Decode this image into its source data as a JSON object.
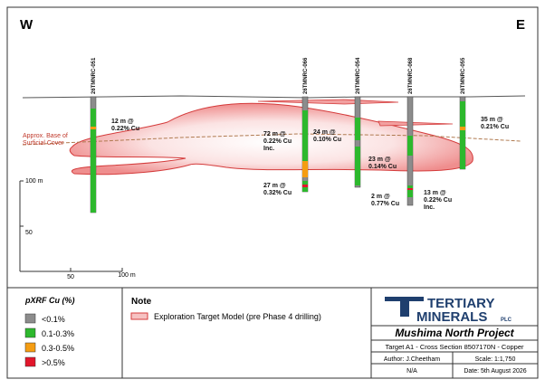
{
  "header": {
    "west": "W",
    "east": "E"
  },
  "holes": [
    "26TMNRC-051",
    "26TMNRC-066",
    "26TMNRC-054",
    "26TMNRC-068",
    "26TMNRC-055"
  ],
  "annotations": [
    {
      "lines": [
        "12 m @",
        "0.22% Cu"
      ]
    },
    {
      "lines": [
        "72 m @",
        "0.22% Cu",
        "Inc."
      ]
    },
    {
      "lines": [
        "24 m @",
        "0.10% Cu"
      ]
    },
    {
      "lines": [
        "35 m @",
        "0.21% Cu"
      ]
    },
    {
      "lines": [
        "23 m @",
        "0.14% Cu"
      ]
    },
    {
      "lines": [
        "27 m @",
        "0.32% Cu"
      ]
    },
    {
      "lines": [
        "2 m @",
        "0.77% Cu"
      ]
    },
    {
      "lines": [
        "13 m @",
        "0.22% Cu",
        "Inc."
      ]
    }
  ],
  "cover_label": [
    "Approx. Base of",
    "Surficial Cover"
  ],
  "scale": {
    "v_top": "100 m",
    "v_mid": "50",
    "h_mid": "50",
    "h_end": "100 m"
  },
  "legend": {
    "title": "pXRF Cu (%)",
    "items": [
      "<0.1%",
      "0.1-0.3%",
      "0.3-0.5%",
      ">0.5%"
    ]
  },
  "note": {
    "title": "Note",
    "item": "Exploration Target Model (pre Phase 4 drilling)"
  },
  "title_block": {
    "logo_line1": "TERTIARY",
    "logo_line2": "MINERALS",
    "logo_suffix": "PLC",
    "project": "Mushima North Project",
    "subtitle": "Target A1 - Cross Section 8507170N - Copper",
    "author": "Author: J.Cheetham",
    "scale": "Scale: 1:1,750",
    "ref": "N/A",
    "date": "Date: 5th August 2026"
  }
}
